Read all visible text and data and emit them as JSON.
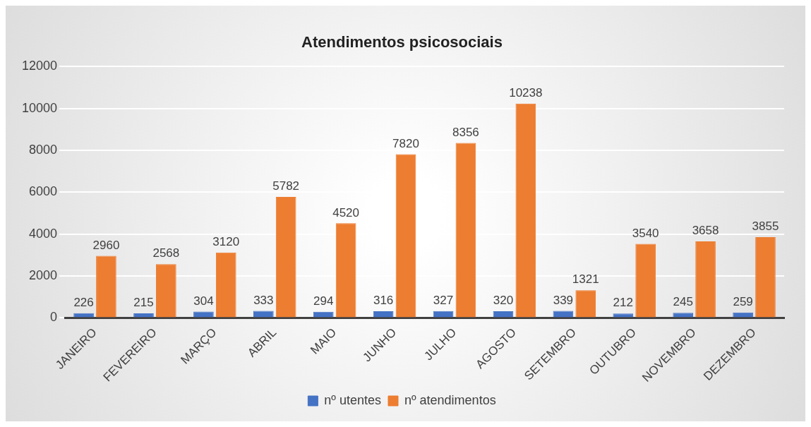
{
  "chart_data": {
    "type": "bar",
    "title": "Atendimentos psicosociais",
    "categories": [
      "JANEIRO",
      "FEVEREIRO",
      "MARÇO",
      "ABRIL",
      "MAIO",
      "JUNHO",
      "JULHO",
      "AGOSTO",
      "SETEMBRO",
      "OUTUBRO",
      "NOVEMBRO",
      "DEZEMBRO"
    ],
    "series": [
      {
        "name": "nº utentes",
        "color": "#4472c4",
        "values": [
          226,
          215,
          304,
          333,
          294,
          316,
          327,
          320,
          339,
          212,
          245,
          259
        ]
      },
      {
        "name": "nº atendimentos",
        "color": "#ed7d31",
        "values": [
          2960,
          2568,
          3120,
          5782,
          4520,
          7820,
          8356,
          10238,
          1321,
          3540,
          3658,
          3855
        ]
      }
    ],
    "ylim": [
      0,
      12000
    ],
    "yticks": [
      0,
      2000,
      4000,
      6000,
      8000,
      10000,
      12000
    ],
    "grid": "y",
    "legend": "bottom",
    "data_labels": true
  }
}
